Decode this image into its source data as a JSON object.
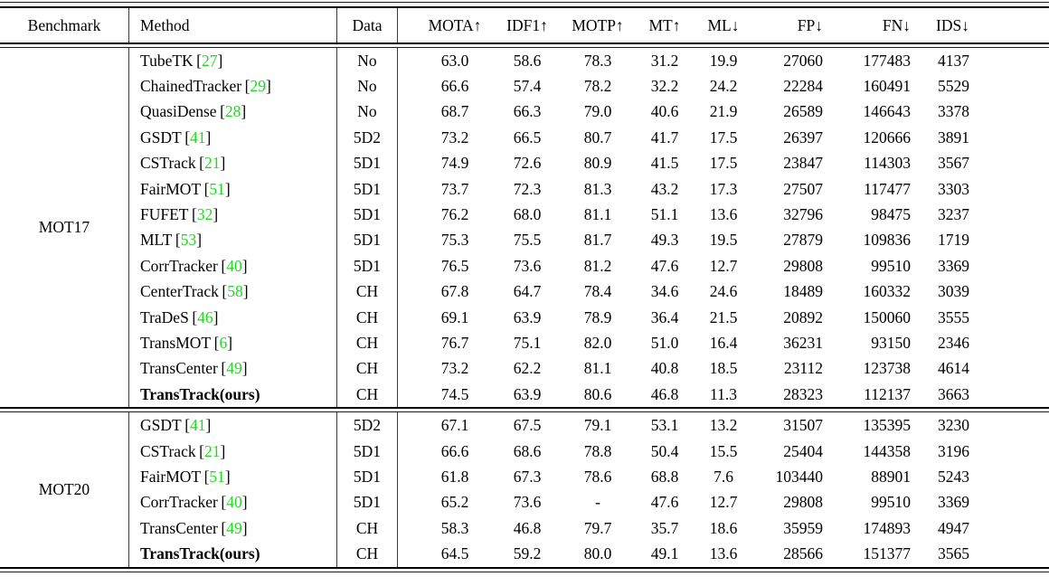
{
  "colors": {
    "citation": "#1ddb1d",
    "text": "#000000",
    "rule": "#000000"
  },
  "table": {
    "columns": [
      {
        "key": "benchmark",
        "label": "Benchmark"
      },
      {
        "key": "method",
        "label": "Method"
      },
      {
        "key": "data",
        "label": "Data"
      },
      {
        "key": "mota",
        "label": "MOTA↑"
      },
      {
        "key": "idf1",
        "label": "IDF1↑"
      },
      {
        "key": "motp",
        "label": "MOTP↑"
      },
      {
        "key": "mt",
        "label": "MT↑"
      },
      {
        "key": "ml",
        "label": "ML↓"
      },
      {
        "key": "fp",
        "label": "FP↓"
      },
      {
        "key": "fn",
        "label": "FN↓"
      },
      {
        "key": "ids",
        "label": "IDS↓"
      }
    ],
    "sections": [
      {
        "benchmark": "MOT17",
        "rows": [
          {
            "method": "TubeTK",
            "cite": "27",
            "data": "No",
            "mota": "63.0",
            "idf1": "58.6",
            "motp": "78.3",
            "mt": "31.2",
            "ml": "19.9",
            "fp": "27060",
            "fn": "177483",
            "ids": "4137",
            "bold": false
          },
          {
            "method": "ChainedTracker",
            "cite": "29",
            "data": "No",
            "mota": "66.6",
            "idf1": "57.4",
            "motp": "78.2",
            "mt": "32.2",
            "ml": "24.2",
            "fp": "22284",
            "fn": "160491",
            "ids": "5529",
            "bold": false
          },
          {
            "method": "QuasiDense",
            "cite": "28",
            "data": "No",
            "mota": "68.7",
            "idf1": "66.3",
            "motp": "79.0",
            "mt": "40.6",
            "ml": "21.9",
            "fp": "26589",
            "fn": "146643",
            "ids": "3378",
            "bold": false
          },
          {
            "method": "GSDT",
            "cite": "41",
            "data": "5D2",
            "mota": "73.2",
            "idf1": "66.5",
            "motp": "80.7",
            "mt": "41.7",
            "ml": "17.5",
            "fp": "26397",
            "fn": "120666",
            "ids": "3891",
            "bold": false
          },
          {
            "method": "CSTrack",
            "cite": "21",
            "data": "5D1",
            "mota": "74.9",
            "idf1": "72.6",
            "motp": "80.9",
            "mt": "41.5",
            "ml": "17.5",
            "fp": "23847",
            "fn": "114303",
            "ids": "3567",
            "bold": false
          },
          {
            "method": "FairMOT",
            "cite": "51",
            "data": "5D1",
            "mota": "73.7",
            "idf1": "72.3",
            "motp": "81.3",
            "mt": "43.2",
            "ml": "17.3",
            "fp": "27507",
            "fn": "117477",
            "ids": "3303",
            "bold": false
          },
          {
            "method": "FUFET",
            "cite": "32",
            "data": "5D1",
            "mota": "76.2",
            "idf1": "68.0",
            "motp": "81.1",
            "mt": "51.1",
            "ml": "13.6",
            "fp": "32796",
            "fn": "98475",
            "ids": "3237",
            "bold": false
          },
          {
            "method": "MLT",
            "cite": "53",
            "data": "5D1",
            "mota": "75.3",
            "idf1": "75.5",
            "motp": "81.7",
            "mt": "49.3",
            "ml": "19.5",
            "fp": "27879",
            "fn": "109836",
            "ids": "1719",
            "bold": false
          },
          {
            "method": "CorrTracker",
            "cite": "40",
            "data": "5D1",
            "mota": "76.5",
            "idf1": "73.6",
            "motp": "81.2",
            "mt": "47.6",
            "ml": "12.7",
            "fp": "29808",
            "fn": "99510",
            "ids": "3369",
            "bold": false
          },
          {
            "method": "CenterTrack",
            "cite": "58",
            "data": "CH",
            "mota": "67.8",
            "idf1": "64.7",
            "motp": "78.4",
            "mt": "34.6",
            "ml": "24.6",
            "fp": "18489",
            "fn": "160332",
            "ids": "3039",
            "bold": false
          },
          {
            "method": "TraDeS",
            "cite": "46",
            "data": "CH",
            "mota": "69.1",
            "idf1": "63.9",
            "motp": "78.9",
            "mt": "36.4",
            "ml": "21.5",
            "fp": "20892",
            "fn": "150060",
            "ids": "3555",
            "bold": false
          },
          {
            "method": "TransMOT",
            "cite": "6",
            "data": "CH",
            "mota": "76.7",
            "idf1": "75.1",
            "motp": "82.0",
            "mt": "51.0",
            "ml": "16.4",
            "fp": "36231",
            "fn": "93150",
            "ids": "2346",
            "bold": false
          },
          {
            "method": "TransCenter",
            "cite": "49",
            "data": "CH",
            "mota": "73.2",
            "idf1": "62.2",
            "motp": "81.1",
            "mt": "40.8",
            "ml": "18.5",
            "fp": "23112",
            "fn": "123738",
            "ids": "4614",
            "bold": false
          },
          {
            "method": "TransTrack(ours)",
            "cite": null,
            "data": "CH",
            "mota": "74.5",
            "idf1": "63.9",
            "motp": "80.6",
            "mt": "46.8",
            "ml": "11.3",
            "fp": "28323",
            "fn": "112137",
            "ids": "3663",
            "bold": true
          }
        ]
      },
      {
        "benchmark": "MOT20",
        "rows": [
          {
            "method": "GSDT",
            "cite": "41",
            "data": "5D2",
            "mota": "67.1",
            "idf1": "67.5",
            "motp": "79.1",
            "mt": "53.1",
            "ml": "13.2",
            "fp": "31507",
            "fn": "135395",
            "ids": "3230",
            "bold": false
          },
          {
            "method": "CSTrack",
            "cite": "21",
            "data": "5D1",
            "mota": "66.6",
            "idf1": "68.6",
            "motp": "78.8",
            "mt": "50.4",
            "ml": "15.5",
            "fp": "25404",
            "fn": "144358",
            "ids": "3196",
            "bold": false
          },
          {
            "method": "FairMOT",
            "cite": "51",
            "data": "5D1",
            "mota": "61.8",
            "idf1": "67.3",
            "motp": "78.6",
            "mt": "68.8",
            "ml": "7.6",
            "fp": "103440",
            "fn": "88901",
            "ids": "5243",
            "bold": false
          },
          {
            "method": "CorrTracker",
            "cite": "40",
            "data": "5D1",
            "mota": "65.2",
            "idf1": "73.6",
            "motp": "-",
            "mt": "47.6",
            "ml": "12.7",
            "fp": "29808",
            "fn": "99510",
            "ids": "3369",
            "bold": false
          },
          {
            "method": "TransCenter",
            "cite": "49",
            "data": "CH",
            "mota": "58.3",
            "idf1": "46.8",
            "motp": "79.7",
            "mt": "35.7",
            "ml": "18.6",
            "fp": "35959",
            "fn": "174893",
            "ids": "4947",
            "bold": false
          },
          {
            "method": "TransTrack(ours)",
            "cite": null,
            "data": "CH",
            "mota": "64.5",
            "idf1": "59.2",
            "motp": "80.0",
            "mt": "49.1",
            "ml": "13.6",
            "fp": "28566",
            "fn": "151377",
            "ids": "3565",
            "bold": true
          }
        ]
      }
    ]
  }
}
